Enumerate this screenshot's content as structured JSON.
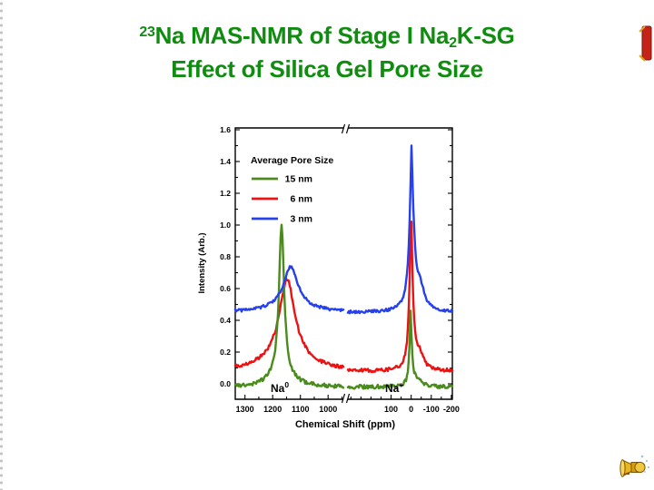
{
  "slide": {
    "title": {
      "line1_sup": "23",
      "line1_main": "Na MAS-NMR of Stage I Na",
      "line1_sub": "2",
      "line1_tail": "K-SG",
      "line2": "Effect of Silica Gel Pore Size",
      "color": "#108c10"
    },
    "icons": {
      "bottom_right": "speaker-sound-icon",
      "top_right": "red-media-marker"
    }
  },
  "chart_data": {
    "type": "line",
    "title": "",
    "xlabel": "Chemical Shift (ppm)",
    "ylabel": "Intensity (Arb.)",
    "ylim": [
      -0.1,
      1.62
    ],
    "yticks": [
      0.0,
      0.2,
      0.4,
      0.6,
      0.8,
      1.0,
      1.2,
      1.4,
      1.6
    ],
    "y_minor_step": 0.1,
    "grid": false,
    "broken_x_axis": true,
    "panels": [
      {
        "xlim": [
          1335,
          945
        ],
        "xticks": [
          1300,
          1200,
          1100,
          1000
        ],
        "minor_step": 50,
        "annotation": {
          "base": "Na",
          "sup": "0"
        }
      },
      {
        "xlim": [
          315,
          -205
        ],
        "xticks": [
          100,
          0,
          -100,
          -200
        ],
        "minor_step": 50,
        "annotation": {
          "base": "Na",
          "sup": "+"
        }
      }
    ],
    "legend": {
      "title": "Average Pore Size",
      "position": "upper-left"
    },
    "axis_color": "#000000",
    "draw_order": [
      1,
      0,
      2
    ],
    "series": [
      {
        "name": "15 nm",
        "color": "#4a8c1c",
        "baseline": -0.02,
        "noise": 0.025,
        "peaks": [
          {
            "c": 1168,
            "h": 0.94,
            "w": 11
          },
          {
            "c": 1168,
            "h": 0.08,
            "w": 45
          },
          {
            "c": 2,
            "h": 0.29,
            "w": 9
          },
          {
            "c": 3,
            "h": 0.18,
            "w": 3.5
          },
          {
            "c": -30,
            "h": 0.04,
            "w": 25
          }
        ],
        "apex_na0": {
          "ppm": 1168,
          "intensity": 1.0
        },
        "apex_na_plus": {
          "ppm": 2,
          "intensity": 0.45
        }
      },
      {
        "name": "6 nm",
        "color": "#ee1111",
        "baseline": 0.08,
        "noise": 0.022,
        "peaks": [
          {
            "c": 1148,
            "h": 0.47,
            "w": 32
          },
          {
            "c": 1148,
            "h": 0.11,
            "w": 80
          },
          {
            "c": 0,
            "h": 0.58,
            "w": 13
          },
          {
            "c": 1,
            "h": 0.44,
            "w": 4.5
          },
          {
            "c": -42,
            "h": 0.1,
            "w": 22
          }
        ],
        "apex_na0": {
          "ppm": 1148,
          "intensity": 0.66
        },
        "apex_na_plus": {
          "ppm": 0,
          "intensity": 1.1
        }
      },
      {
        "name": "3 nm",
        "color": "#2540ee",
        "baseline": 0.45,
        "noise": 0.018,
        "peaks": [
          {
            "c": 1135,
            "h": 0.23,
            "w": 28
          },
          {
            "c": 1135,
            "h": 0.06,
            "w": 70
          },
          {
            "c": -3,
            "h": 0.68,
            "w": 16
          },
          {
            "c": -1,
            "h": 0.35,
            "w": 4.5
          },
          {
            "c": -45,
            "h": 0.13,
            "w": 26
          }
        ],
        "apex_na0": {
          "ppm": 1135,
          "intensity": 0.74
        },
        "apex_na_plus": {
          "ppm": -2,
          "intensity": 1.48
        }
      }
    ]
  }
}
